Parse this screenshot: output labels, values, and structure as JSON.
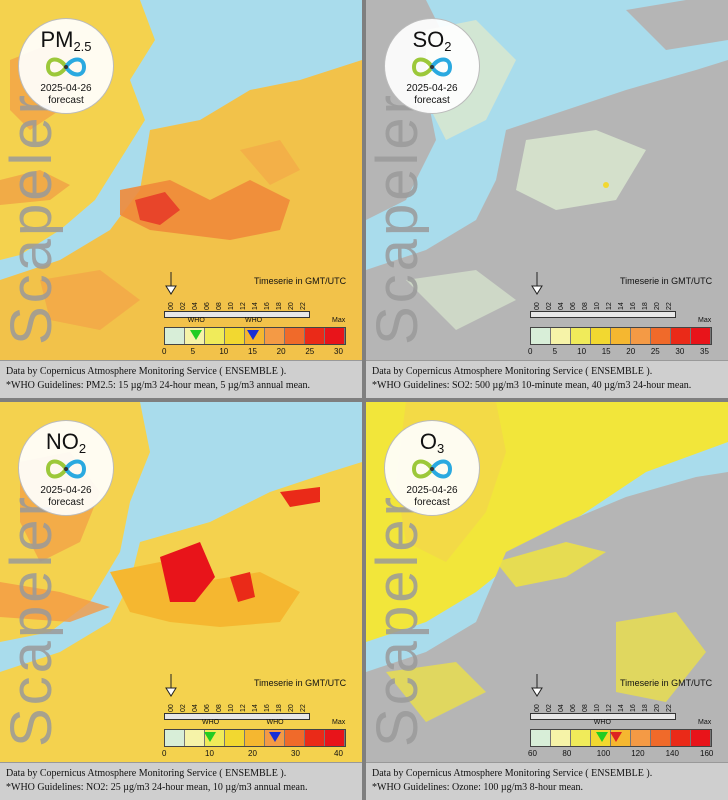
{
  "panels": [
    {
      "pollutant": "PM",
      "pollutant_sub": "2.5",
      "date": "2025-04-26",
      "forecast": "forecast",
      "brand": "Scapeler",
      "timeseries": "Timeserie in GMT/UTC",
      "hours": [
        "00",
        "02",
        "04",
        "06",
        "08",
        "10",
        "12",
        "14",
        "16",
        "18",
        "20",
        "22"
      ],
      "scale_labels": [
        "0",
        "5",
        "10",
        "15",
        "20",
        "25",
        "30"
      ],
      "max_label": "Max",
      "who_labels": [
        "WHO",
        "WHO"
      ],
      "who_markers": [
        {
          "value": 5,
          "color": "#22cc22"
        },
        {
          "value": 15,
          "color": "#1a2fd6"
        }
      ],
      "footer_line1": "Data by Copernicus Atmosphere Monitoring Service ( ENSEMBLE ).",
      "footer_line2": "*WHO Guidelines: PM2.5: 15 µg/m3 24-hour mean, 5 µg/m3 annual mean.",
      "map_theme": "orange"
    },
    {
      "pollutant": "SO",
      "pollutant_sub": "2",
      "date": "2025-04-26",
      "forecast": "forecast",
      "brand": "Scapeler",
      "timeseries": "Timeserie in GMT/UTC",
      "hours": [
        "00",
        "02",
        "04",
        "06",
        "08",
        "10",
        "12",
        "14",
        "16",
        "18",
        "20",
        "22"
      ],
      "scale_labels": [
        "0",
        "5",
        "10",
        "15",
        "20",
        "25",
        "30",
        "35"
      ],
      "max_label": "Max",
      "who_labels": [],
      "who_markers": [],
      "footer_line1": "Data by Copernicus Atmosphere Monitoring Service ( ENSEMBLE ).",
      "footer_line2": "*WHO Guidelines: SO2: 500 µg/m3 10-minute mean, 40 µg/m3 24-hour mean.",
      "map_theme": "gray"
    },
    {
      "pollutant": "NO",
      "pollutant_sub": "2",
      "date": "2025-04-26",
      "forecast": "forecast",
      "brand": "Scapeler",
      "timeseries": "Timeserie in GMT/UTC",
      "hours": [
        "00",
        "02",
        "04",
        "06",
        "08",
        "10",
        "12",
        "14",
        "16",
        "18",
        "20",
        "22"
      ],
      "scale_labels": [
        "0",
        "10",
        "20",
        "30",
        "40"
      ],
      "max_label": "Max",
      "who_labels": [
        "WHO",
        "WHO"
      ],
      "who_markers": [
        {
          "value": 10,
          "color": "#22cc22"
        },
        {
          "value": 25,
          "color": "#1a2fd6"
        }
      ],
      "footer_line1": "Data by Copernicus Atmosphere Monitoring Service ( ENSEMBLE ).",
      "footer_line2": "*WHO Guidelines: NO2: 25 µg/m3 24-hour mean, 10 µg/m3 annual mean.",
      "map_theme": "orange"
    },
    {
      "pollutant": "O",
      "pollutant_sub": "3",
      "date": "2025-04-26",
      "forecast": "forecast",
      "brand": "Scapeler",
      "timeseries": "Timeserie in GMT/UTC",
      "hours": [
        "00",
        "02",
        "04",
        "06",
        "08",
        "10",
        "12",
        "14",
        "16",
        "18",
        "20",
        "22"
      ],
      "scale_labels": [
        "60",
        "80",
        "100",
        "120",
        "140",
        "160"
      ],
      "max_label": "Max",
      "who_labels": [
        "WHO"
      ],
      "who_markers": [
        {
          "value": 100,
          "color": "#22cc22"
        },
        {
          "value": 108,
          "color": "#dd2222"
        }
      ],
      "footer_line1": "Data by Copernicus Atmosphere Monitoring Service ( ENSEMBLE ).",
      "footer_line2": "*WHO Guidelines: Ozone: 100 µg/m3 8-hour mean.",
      "map_theme": "yellow"
    }
  ],
  "colors": {
    "scale": [
      "#d8eed8",
      "#f6f3a8",
      "#f0eb5a",
      "#f2d830",
      "#f5b730",
      "#f49a45",
      "#f06a2a",
      "#ea2a18",
      "#e8141a"
    ],
    "sea": "#a9dcec",
    "land_gray": "#b2b2b2"
  }
}
